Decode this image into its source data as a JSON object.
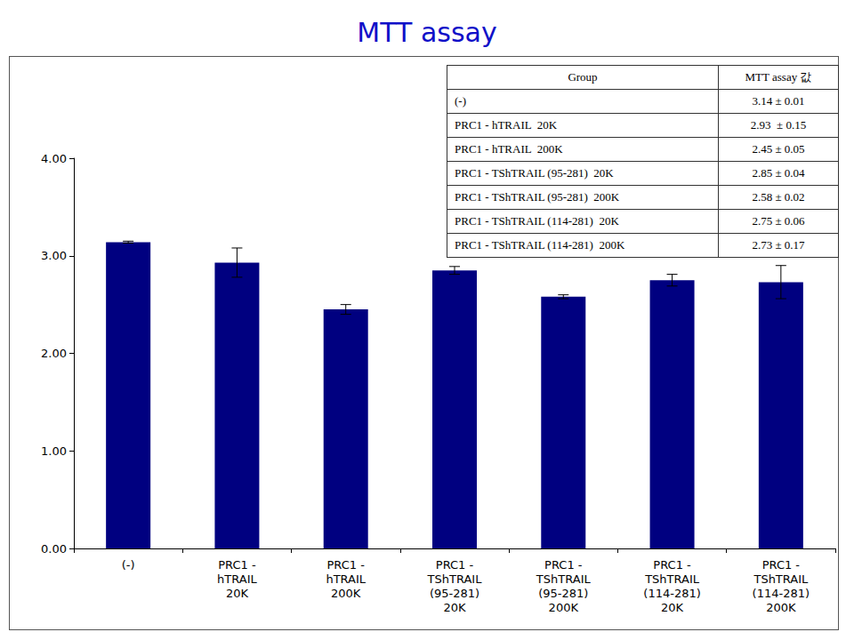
{
  "chart_data": {
    "type": "bar",
    "title": "MTT assay",
    "categories": [
      "(-)",
      "PRC1 -\nhTRAIL\n20K",
      "PRC1 -\nhTRAIL\n200K",
      "PRC1 -\nTShTRAIL\n(95-281)\n20K",
      "PRC1 -\nTShTRAIL\n(95-281)\n200K",
      "PRC1 -\nTShTRAIL\n(114-281)\n20K",
      "PRC1 -\nTShTRAIL\n(114-281)\n200K"
    ],
    "values": [
      3.14,
      2.93,
      2.45,
      2.85,
      2.58,
      2.75,
      2.73
    ],
    "errors": [
      0.01,
      0.15,
      0.05,
      0.04,
      0.02,
      0.06,
      0.17
    ],
    "color": "#000080",
    "ylim": [
      0,
      4
    ],
    "yticks": [
      {
        "value": 0,
        "label": "0.00"
      },
      {
        "value": 1,
        "label": "1.00"
      },
      {
        "value": 2,
        "label": "2.00"
      },
      {
        "value": 3,
        "label": "3.00"
      },
      {
        "value": 4,
        "label": "4.00"
      }
    ],
    "grid": false
  },
  "table": {
    "header": [
      "Group",
      "MTT assay 값"
    ],
    "rows": [
      [
        "(-)",
        "3.14 ± 0.01"
      ],
      [
        "PRC1 - hTRAIL  20K",
        "2.93  ± 0.15"
      ],
      [
        "PRC1 - hTRAIL  200K",
        "2.45 ± 0.05"
      ],
      [
        "PRC1 - TShTRAIL (95-281)  20K",
        "2.85 ± 0.04"
      ],
      [
        "PRC1 - TShTRAIL (95-281)  200K",
        "2.58 ± 0.02"
      ],
      [
        "PRC1 - TShTRAIL (114-281)  20K",
        "2.75 ± 0.06"
      ],
      [
        "PRC1 - TShTRAIL (114-281)  200K",
        "2.73 ± 0.17"
      ]
    ]
  }
}
